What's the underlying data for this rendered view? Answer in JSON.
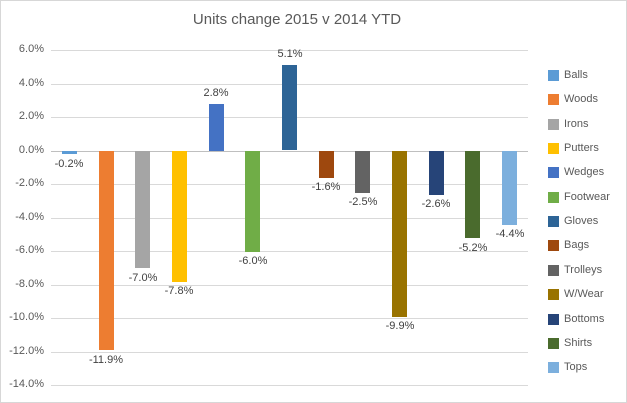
{
  "chart_data": {
    "type": "bar",
    "title": "Units change 2015 v 2014 YTD",
    "categories": [
      "Balls",
      "Woods",
      "Irons",
      "Putters",
      "Wedges",
      "Footwear",
      "Gloves",
      "Bags",
      "Trolleys",
      "W/Wear",
      "Bottoms",
      "Shirts",
      "Tops"
    ],
    "values": [
      -0.2,
      -11.9,
      -7.0,
      -7.8,
      2.8,
      -6.0,
      5.1,
      -1.6,
      -2.5,
      -9.9,
      -2.6,
      -5.2,
      -4.4
    ],
    "data_labels": [
      "-0.2%",
      "-11.9%",
      "-7.0%",
      "-7.8%",
      "2.8%",
      "-6.0%",
      "5.1%",
      "-1.6%",
      "-2.5%",
      "-9.9%",
      "-2.6%",
      "-5.2%",
      "-4.4%"
    ],
    "colors": [
      "#5B9BD5",
      "#ED7D31",
      "#A5A5A5",
      "#FFC000",
      "#4472C4",
      "#70AD47",
      "#2D6496",
      "#9E480E",
      "#636363",
      "#997300",
      "#264478",
      "#4A6B2D",
      "#7CAFDD"
    ],
    "xlabel": "",
    "ylabel": "",
    "ylim": [
      -14,
      6
    ],
    "ytick_values": [
      6,
      4,
      2,
      0,
      -2,
      -4,
      -6,
      -8,
      -10,
      -12,
      -14
    ],
    "ytick_labels": [
      "6.0%",
      "4.0%",
      "2.0%",
      "0.0%",
      "-2.0%",
      "-4.0%",
      "-6.0%",
      "-8.0%",
      "-10.0%",
      "-12.0%",
      "-14.0%"
    ],
    "grid": true,
    "legend_position": "right",
    "colors_meta": {
      "gridline": "#d9d9d9",
      "zero_line": "#bfbfbf",
      "title_text": "#595959",
      "tick_text": "#595959",
      "data_label_text": "#404040",
      "legend_text": "#595959",
      "background": "#ffffff",
      "border": "#d7d7d7"
    }
  }
}
